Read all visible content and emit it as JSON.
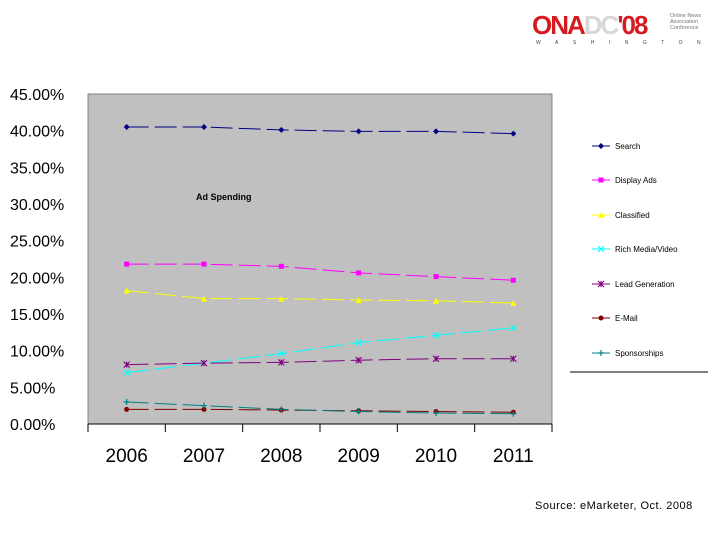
{
  "logo": {
    "part1": "ONA",
    "part2": "DC",
    "part3": "'08",
    "subtitle": "Online News Association Conference",
    "city": "WASHINGTON"
  },
  "source": "Source: eMarketer, Oct. 2008",
  "chart_data": {
    "type": "line",
    "title": "Ad Spending",
    "categories": [
      "2006",
      "2007",
      "2008",
      "2009",
      "2010",
      "2011"
    ],
    "ylim": [
      0,
      45
    ],
    "yticks": [
      "0.00%",
      "5.00%",
      "10.00%",
      "15.00%",
      "20.00%",
      "25.00%",
      "30.00%",
      "35.00%",
      "40.00%",
      "45.00%"
    ],
    "legend_position": "right",
    "series": [
      {
        "name": "Search",
        "color": "#000080",
        "marker": "diamond",
        "values": [
          40.5,
          40.5,
          40.1,
          39.9,
          39.9,
          39.6
        ]
      },
      {
        "name": "Display Ads",
        "color": "#ff00ff",
        "marker": "square",
        "values": [
          21.8,
          21.8,
          21.5,
          20.6,
          20.1,
          19.6
        ]
      },
      {
        "name": "Classified",
        "color": "#ffff00",
        "marker": "triangle",
        "values": [
          18.2,
          17.1,
          17.1,
          16.9,
          16.8,
          16.5
        ]
      },
      {
        "name": "Rich Media/Video",
        "color": "#00ffff",
        "marker": "x",
        "values": [
          7.0,
          8.3,
          9.6,
          11.1,
          12.1,
          13.1
        ]
      },
      {
        "name": "Lead Generation",
        "color": "#800080",
        "marker": "star",
        "values": [
          8.1,
          8.3,
          8.4,
          8.7,
          8.9,
          8.9
        ]
      },
      {
        "name": "E-Mail",
        "color": "#800000",
        "marker": "circle",
        "values": [
          2.0,
          2.0,
          1.9,
          1.8,
          1.7,
          1.6
        ]
      },
      {
        "name": "Sponsorships",
        "color": "#008080",
        "marker": "plus",
        "values": [
          3.0,
          2.5,
          2.0,
          1.7,
          1.5,
          1.4
        ]
      }
    ]
  }
}
